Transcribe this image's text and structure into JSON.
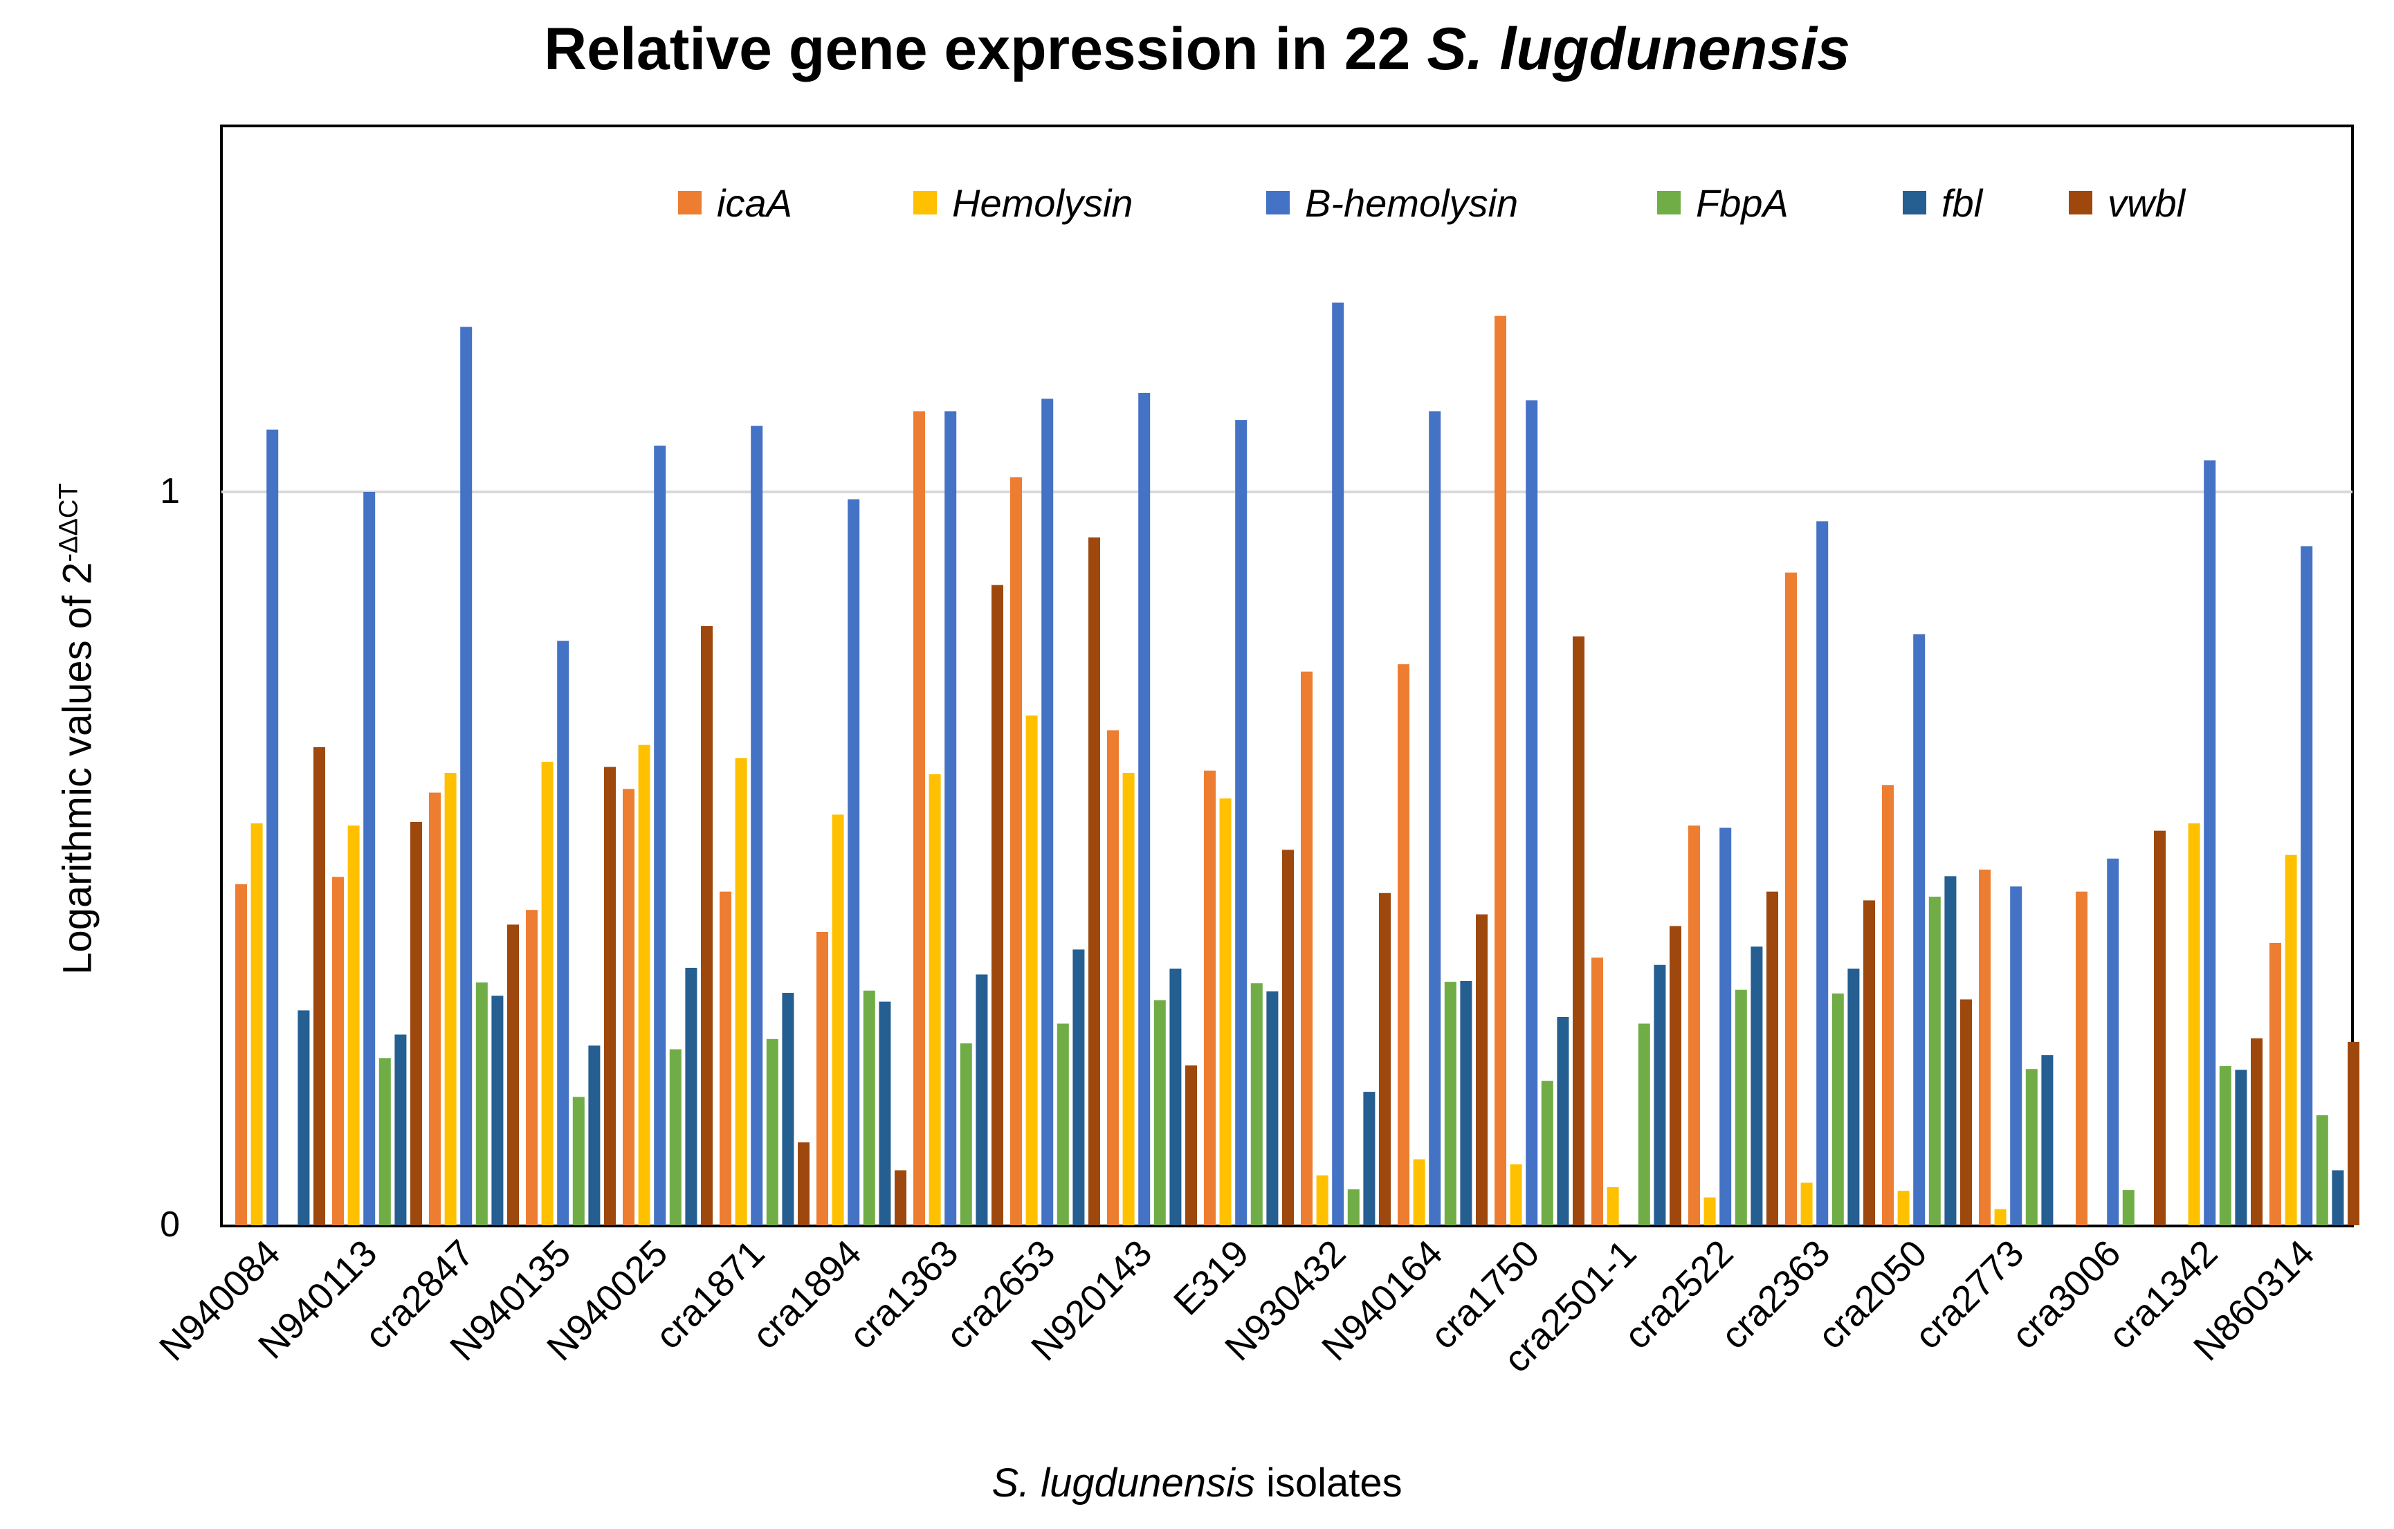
{
  "chart_data": {
    "type": "bar",
    "title": "Relative gene expression in 22",
    "title_italic": "S. lugdunensis",
    "xlabel_italic": "S. lugdunensis",
    "xlabel_rest": " isolates",
    "ylabel": "Logarithmic values of 2",
    "ylabel_sup": "-ΔΔCT",
    "ylim": [
      0,
      1.5
    ],
    "yticks": [
      "0",
      "1"
    ],
    "grid": true,
    "legend_position": "top-right",
    "categories": [
      "N940084",
      "N940113",
      "cra2847",
      "N940135",
      "N940025",
      "cra1871",
      "cra1894",
      "cra1363",
      "cra2653",
      "N920143",
      "E319",
      "N930432",
      "N940164",
      "cra1750",
      "cra2501-1",
      "cra2522",
      "cra2363",
      "cra2050",
      "cra2773",
      "cra3006",
      "cra1342",
      "N860314"
    ],
    "series": [
      {
        "name": "icaA",
        "color": "#ED7D31",
        "values": [
          0.465,
          0.475,
          0.59,
          0.43,
          0.595,
          0.455,
          0.4,
          1.11,
          1.02,
          0.675,
          0.62,
          0.755,
          0.765,
          1.24,
          0.365,
          0.545,
          0.89,
          0.6,
          0.485,
          0.455,
          0,
          0.385
        ]
      },
      {
        "name": "Hemolysin",
        "color": "#FFC000",
        "values": [
          0.548,
          0.545,
          0.617,
          0.632,
          0.655,
          0.637,
          0.56,
          0.615,
          0.695,
          0.617,
          0.582,
          0.068,
          0.09,
          0.083,
          0.052,
          0.038,
          0.058,
          0.047,
          0.022,
          0,
          0.548,
          0.505
        ]
      },
      {
        "name": "B-hemolysin",
        "color": "#4472C4",
        "values": [
          1.085,
          1.0,
          1.225,
          0.797,
          1.063,
          1.09,
          0.99,
          1.11,
          1.127,
          1.135,
          1.098,
          1.258,
          1.11,
          1.125,
          0,
          0.542,
          0.96,
          0.806,
          0.462,
          0.5,
          1.043,
          0.926
        ]
      },
      {
        "name": "FbpA",
        "color": "#70AD47",
        "values": [
          0,
          0.228,
          0.331,
          0.175,
          0.24,
          0.254,
          0.32,
          0.248,
          0.275,
          0.307,
          0.33,
          0.049,
          0.332,
          0.197,
          0.275,
          0.321,
          0.316,
          0.448,
          0.213,
          0.048,
          0.217,
          0.15
        ]
      },
      {
        "name": "fbl",
        "color": "#255E91",
        "values": [
          0.293,
          0.26,
          0.313,
          0.245,
          0.351,
          0.317,
          0.305,
          0.342,
          0.376,
          0.35,
          0.319,
          0.182,
          0.333,
          0.284,
          0.355,
          0.38,
          0.35,
          0.476,
          0.232,
          0,
          0.212,
          0.075
        ]
      },
      {
        "name": "vwbl",
        "color": "#9E480E",
        "values": [
          0.652,
          0.55,
          0.41,
          0.625,
          0.817,
          0.113,
          0.075,
          0.873,
          0.938,
          0.218,
          0.512,
          0.453,
          0.424,
          0.803,
          0.408,
          0.455,
          0.443,
          0.308,
          0,
          0.538,
          0.255,
          0.25
        ]
      }
    ]
  }
}
